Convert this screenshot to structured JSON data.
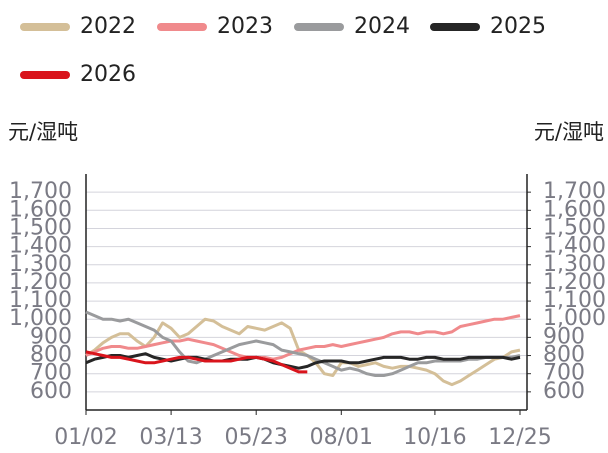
{
  "chart_data": {
    "type": "line",
    "y_label": "元/湿吨",
    "y2_label": "元/湿吨",
    "categories": [
      "01/02",
      null,
      null,
      null,
      null,
      null,
      null,
      null,
      null,
      null,
      "03/13",
      null,
      null,
      null,
      null,
      null,
      null,
      null,
      null,
      null,
      "05/23",
      null,
      null,
      null,
      null,
      null,
      null,
      null,
      null,
      null,
      "08/01",
      null,
      null,
      null,
      null,
      null,
      null,
      null,
      null,
      null,
      null,
      "10/16",
      null,
      null,
      null,
      null,
      null,
      null,
      null,
      null,
      null,
      "12/25"
    ],
    "ylim": [
      500,
      1800
    ],
    "yticks": [
      600,
      700,
      800,
      900,
      {
        "value": 1000,
        "label": "1,000"
      },
      {
        "value": 1100,
        "label": "1,100"
      },
      {
        "value": 1200,
        "label": "1,200"
      },
      {
        "value": 1300,
        "label": "1,300"
      },
      {
        "value": 1400,
        "label": "1,400"
      },
      {
        "value": 1500,
        "label": "1,500"
      },
      {
        "value": 1600,
        "label": "1,600"
      },
      {
        "value": 1700,
        "label": "1,700"
      }
    ],
    "y2lim": [
      500,
      1800
    ],
    "y2ticks": [
      600,
      700,
      800,
      900,
      {
        "value": 1000,
        "label": "1,000"
      },
      {
        "value": 1100,
        "label": "1,100"
      },
      {
        "value": 1200,
        "label": "1,200"
      },
      {
        "value": 1300,
        "label": "1,300"
      },
      {
        "value": 1400,
        "label": "1,400"
      },
      {
        "value": 1500,
        "label": "1,500"
      },
      {
        "value": 1600,
        "label": "1,600"
      },
      {
        "value": 1700,
        "label": "1,700"
      }
    ],
    "grid": true,
    "legend": "top",
    "series": [
      {
        "name": "2022",
        "color": "#d4bf98",
        "values": [
          800,
          830,
          870,
          900,
          920,
          920,
          880,
          850,
          900,
          980,
          950,
          900,
          920,
          960,
          1000,
          990,
          960,
          940,
          920,
          960,
          950,
          940,
          960,
          980,
          950,
          830,
          800,
          760,
          700,
          690,
          760,
          760,
          740,
          750,
          760,
          740,
          730,
          740,
          740,
          730,
          720,
          700,
          660,
          640,
          660,
          690,
          720,
          750,
          780,
          790,
          820,
          830
        ]
      },
      {
        "name": "2023",
        "color": "#f08a8c",
        "values": [
          800,
          820,
          840,
          850,
          850,
          840,
          840,
          850,
          860,
          870,
          880,
          880,
          890,
          880,
          870,
          860,
          840,
          820,
          800,
          790,
          790,
          790,
          780,
          790,
          810,
          830,
          840,
          850,
          850,
          860,
          850,
          860,
          870,
          880,
          890,
          900,
          920,
          930,
          930,
          920,
          930,
          930,
          920,
          930,
          960,
          970,
          980,
          990,
          1000,
          1000,
          1010,
          1020
        ]
      },
      {
        "name": "2024",
        "color": "#9a9b9d",
        "values": [
          1040,
          1020,
          1000,
          1000,
          990,
          1000,
          980,
          960,
          940,
          900,
          880,
          820,
          770,
          760,
          780,
          800,
          820,
          840,
          860,
          870,
          880,
          870,
          860,
          830,
          820,
          810,
          800,
          780,
          760,
          740,
          720,
          730,
          720,
          700,
          690,
          690,
          700,
          720,
          740,
          760,
          760,
          770,
          770,
          770,
          770,
          780,
          780,
          790,
          790,
          790,
          790,
          800
        ]
      },
      {
        "name": "2025",
        "color": "#262626",
        "values": [
          760,
          780,
          790,
          800,
          800,
          790,
          800,
          810,
          790,
          780,
          770,
          780,
          790,
          790,
          780,
          770,
          770,
          780,
          780,
          780,
          790,
          780,
          760,
          750,
          740,
          730,
          740,
          760,
          770,
          770,
          770,
          760,
          760,
          770,
          780,
          790,
          790,
          790,
          780,
          780,
          790,
          790,
          780,
          780,
          780,
          790,
          790,
          790,
          790,
          790,
          780,
          790
        ]
      },
      {
        "name": "2026",
        "color": "#d9141c",
        "values": [
          820,
          810,
          800,
          790,
          790,
          780,
          770,
          760,
          760,
          770,
          780,
          790,
          790,
          780,
          770,
          770,
          770,
          770,
          780,
          790,
          790,
          780,
          770,
          750,
          730,
          710,
          710,
          null,
          null,
          null,
          null,
          null,
          null,
          null,
          null,
          null,
          null,
          null,
          null,
          null,
          null,
          null,
          null,
          null,
          null,
          null,
          null,
          null,
          null,
          null,
          null,
          null
        ]
      }
    ]
  }
}
